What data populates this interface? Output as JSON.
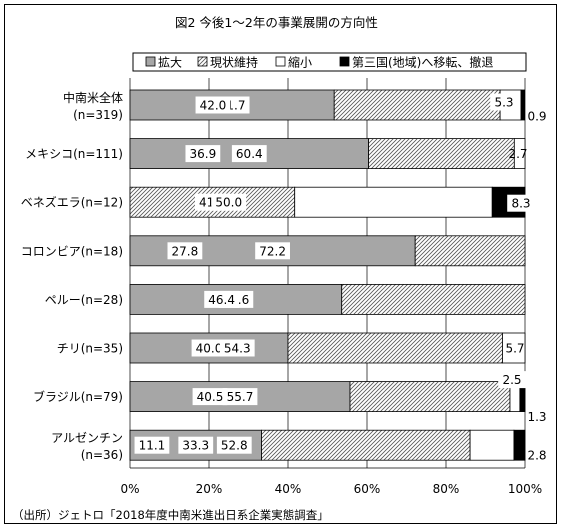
{
  "chart_data": {
    "type": "bar",
    "orientation": "horizontal",
    "stacked": true,
    "title": "図2 今後1～2年の事業展開の方向性",
    "source_note": "（出所）ジェトロ「2018年度中南米進出日系企業実態調査」",
    "categories": [
      [
        "中南米全体",
        "(n=319)"
      ],
      [
        "メキシコ(n=111)"
      ],
      [
        "ベネズエラ(n=12)"
      ],
      [
        "コロンビア(n=18)"
      ],
      [
        "ペルー(n=28)"
      ],
      [
        "チリ(n=35)"
      ],
      [
        "ブラジル(n=79)"
      ],
      [
        "アルゼンチン",
        "(n=36)"
      ]
    ],
    "series": [
      {
        "name": "拡大",
        "values": [
          51.7,
          60.4,
          0,
          72.2,
          53.6,
          40.0,
          55.7,
          33.3
        ],
        "color": "#a6a6a6",
        "pattern": "solid"
      },
      {
        "name": "現状維持",
        "values": [
          42.0,
          36.9,
          41.7,
          27.8,
          46.4,
          54.3,
          40.5,
          52.8
        ],
        "color": "#ffffff",
        "pattern": "hatch"
      },
      {
        "name": "縮小",
        "values": [
          5.3,
          2.7,
          50.0,
          0,
          0,
          5.7,
          2.5,
          11.1
        ],
        "color": "#ffffff",
        "pattern": "white"
      },
      {
        "name": "第三国(地域)へ移転、撤退",
        "values": [
          0.9,
          0,
          8.3,
          0,
          0,
          0,
          1.3,
          2.8
        ],
        "color": "#000000",
        "pattern": "solid"
      }
    ],
    "x_ticks": [
      "0%",
      "20%",
      "40%",
      "60%",
      "80%",
      "100%"
    ],
    "xlim": [
      0,
      100
    ],
    "grid": true,
    "legend_position": "top-right"
  }
}
